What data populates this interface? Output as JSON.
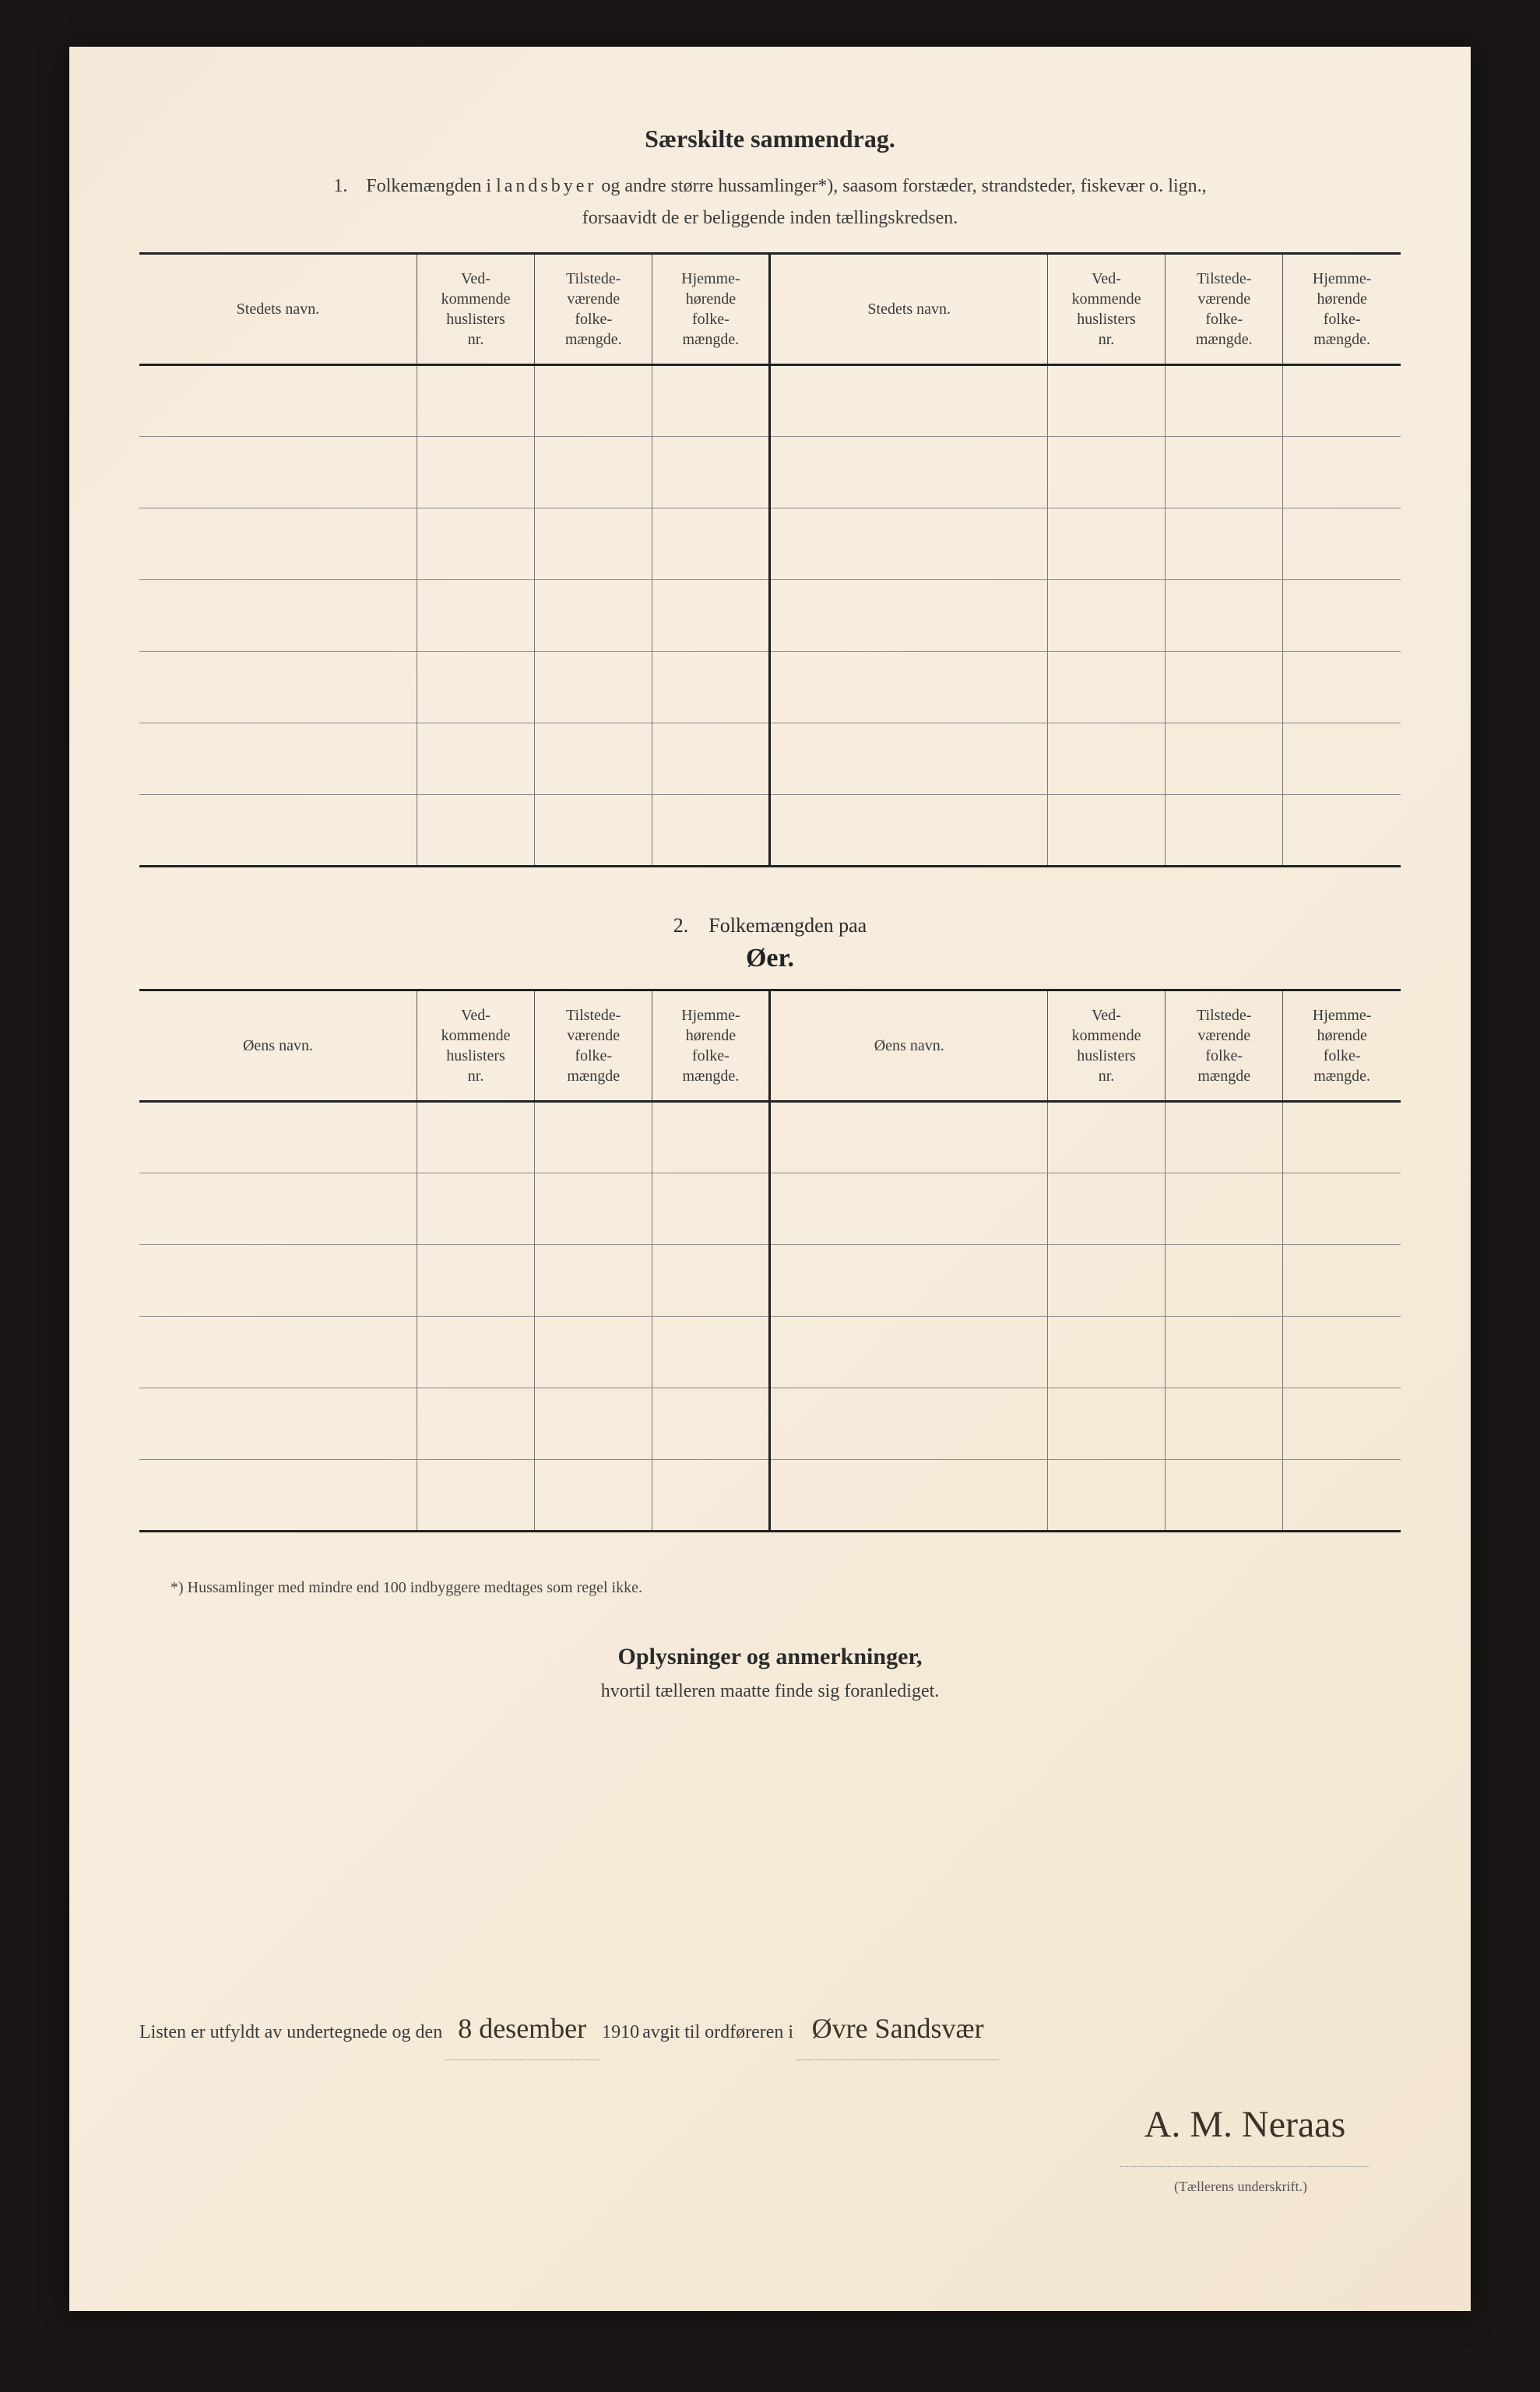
{
  "colors": {
    "page_bg": "#f4e8d8",
    "outer_bg": "#1a1616",
    "text": "#2a2a2a",
    "rule_heavy": "#222222",
    "rule_light": "#888888",
    "handwriting": "#3a3328"
  },
  "section1": {
    "title": "Særskilte sammendrag.",
    "intro_num": "1.",
    "intro_a": "Folkemængden i",
    "intro_spaced": "landsbyer",
    "intro_b": "og andre større hussamlinger*), saasom forstæder, strandsteder, fiskevær o. lign.,",
    "intro_c": "forsaavidt de er beliggende inden tællingskredsen.",
    "headers": {
      "name": "Stedets navn.",
      "col_a": "Ved-\nkommende\nhuslisters\nnr.",
      "col_b": "Tilstede-\nværende\nfolke-\nmængde.",
      "col_c": "Hjemme-\nhørende\nfolke-\nmængde."
    },
    "row_count": 7
  },
  "section2": {
    "intro_num": "2.",
    "intro_text": "Folkemængden paa",
    "title": "Øer.",
    "headers": {
      "name": "Øens navn.",
      "col_a": "Ved-\nkommende\nhuslisters\nnr.",
      "col_b": "Tilstede-\nværende\nfolke-\nmængde",
      "col_c": "Hjemme-\nhørende\nfolke-\nmængde."
    },
    "row_count": 6
  },
  "footnote": "*) Hussamlinger med mindre end 100 indbyggere medtages som regel ikke.",
  "oplysninger": {
    "title": "Oplysninger og anmerkninger,",
    "sub": "hvortil tælleren maatte finde sig foranlediget."
  },
  "signature": {
    "prefix": "Listen er utfyldt av undertegnede og den",
    "date_hand": "8 desember",
    "year": "1910",
    "mid": "avgit til ordføreren i",
    "place_hand": "Øvre Sandsvær",
    "name_hand": "A. M. Neraas",
    "caption": "(Tællerens underskrift.)"
  }
}
